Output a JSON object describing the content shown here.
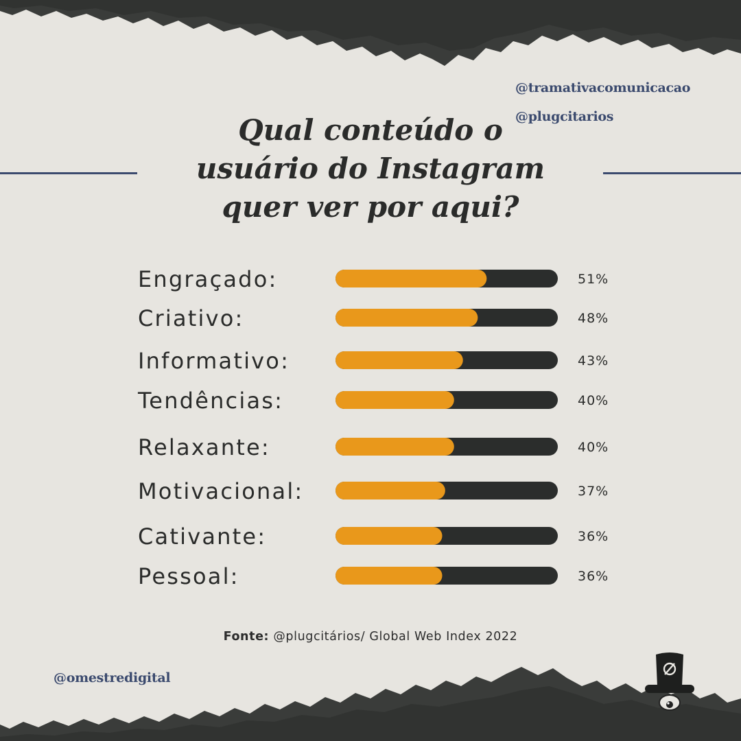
{
  "handles": {
    "top_first": "@tramativacomunicacao",
    "top_second": "@plugcitarios",
    "bottom": "@omestredigital"
  },
  "title_lines": [
    "Qual conteúdo o",
    "usuário do Instagram",
    "quer ver por aqui?"
  ],
  "source": {
    "label": "Fonte:",
    "text": " @plugcitários/ Global Web Index 2022"
  },
  "colors": {
    "background": "#e7e5e0",
    "bar_fill": "#e9981b",
    "bar_track": "#2b2d2c",
    "accent": "#3b4a6e",
    "text": "#2a2b2a"
  },
  "logo": {
    "icon": "top-hat-mascot-icon"
  },
  "chart_data": {
    "type": "bar",
    "orientation": "horizontal",
    "categories": [
      "Engraçado:",
      "Criativo:",
      "Informativo:",
      "Tendências:",
      "Relaxante:",
      "Motivacional:",
      "Cativante:",
      "Pessoal:"
    ],
    "values": [
      51,
      48,
      43,
      40,
      40,
      37,
      36,
      36
    ],
    "value_labels": [
      "51%",
      "48%",
      "43%",
      "40%",
      "40%",
      "37%",
      "36%",
      "36%"
    ],
    "unit": "%",
    "grid": false,
    "legend": "none"
  }
}
